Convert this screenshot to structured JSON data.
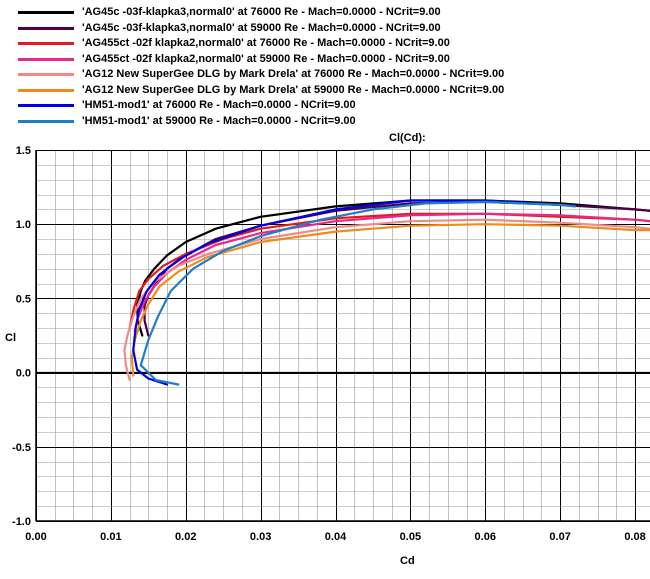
{
  "chart_data": {
    "type": "line",
    "title": "Cl(Cd):",
    "xlabel": "Cd",
    "ylabel": "Cl",
    "xlim": [
      0,
      0.082
    ],
    "ylim": [
      -1.0,
      1.5
    ],
    "xticks": [
      "0.00",
      "0.01",
      "0.02",
      "0.03",
      "0.04",
      "0.05",
      "0.06",
      "0.07",
      "0.08"
    ],
    "yticks": [
      "1.5",
      "1.0",
      "0.5",
      "0.0",
      "-0.5",
      "-1.0"
    ],
    "grid": true,
    "legend_position": "top-left",
    "series": [
      {
        "name": "'AG45c -03f-klapka3,normal0' at 76000 Re - Mach=0.0000 - NCrit=9.00",
        "color": "#000000",
        "x": [
          0.0142,
          0.0136,
          0.0135,
          0.014,
          0.0146,
          0.0158,
          0.0175,
          0.02,
          0.024,
          0.03,
          0.04,
          0.05,
          0.06,
          0.07,
          0.08,
          0.082
        ],
        "y": [
          0.25,
          0.35,
          0.45,
          0.55,
          0.62,
          0.7,
          0.79,
          0.88,
          0.97,
          1.05,
          1.12,
          1.16,
          1.16,
          1.14,
          1.1,
          1.09
        ]
      },
      {
        "name": "'AG45c -03f-klapka3,normal0' at 59000 Re - Mach=0.0000 - NCrit=9.00",
        "color": "#4b0049",
        "x": [
          0.015,
          0.0145,
          0.0145,
          0.015,
          0.016,
          0.0175,
          0.02,
          0.024,
          0.03,
          0.04,
          0.05,
          0.06,
          0.07,
          0.08,
          0.082
        ],
        "y": [
          0.25,
          0.35,
          0.45,
          0.52,
          0.6,
          0.7,
          0.79,
          0.9,
          0.99,
          1.09,
          1.14,
          1.15,
          1.13,
          1.1,
          1.09
        ]
      },
      {
        "name": "'AG455ct -02f klapka2,normal0' at 76000 Re - Mach=0.0000 - NCrit=9.00",
        "color": "#e51a1a",
        "x": [
          0.0125,
          0.013,
          0.0138,
          0.015,
          0.017,
          0.02,
          0.025,
          0.03,
          0.04,
          0.05,
          0.06,
          0.07,
          0.08,
          0.082
        ],
        "y": [
          0.3,
          0.42,
          0.55,
          0.63,
          0.72,
          0.8,
          0.9,
          0.97,
          1.04,
          1.07,
          1.07,
          1.05,
          1.03,
          1.02
        ]
      },
      {
        "name": "'AG455ct -02f klapka2,normal0' at 59000 Re - Mach=0.0000 - NCrit=9.00",
        "color": "#e8288a",
        "x": [
          0.0132,
          0.0137,
          0.0145,
          0.0158,
          0.0175,
          0.02,
          0.024,
          0.03,
          0.04,
          0.05,
          0.06,
          0.07,
          0.08,
          0.082
        ],
        "y": [
          0.28,
          0.38,
          0.48,
          0.58,
          0.67,
          0.76,
          0.86,
          0.94,
          1.02,
          1.06,
          1.07,
          1.06,
          1.03,
          1.02
        ]
      },
      {
        "name": "'AG12 New SuperGee DLG by Mark Drela' at 76000 Re - Mach=0.0000 - NCrit=9.00",
        "color": "#f08a8a",
        "x": [
          0.0125,
          0.012,
          0.0118,
          0.0122,
          0.013,
          0.014,
          0.016,
          0.019,
          0.023,
          0.03,
          0.04,
          0.05,
          0.06,
          0.07,
          0.08,
          0.082
        ],
        "y": [
          -0.05,
          0.05,
          0.15,
          0.25,
          0.38,
          0.5,
          0.62,
          0.72,
          0.8,
          0.9,
          0.98,
          1.02,
          1.03,
          1.01,
          0.98,
          0.97
        ]
      },
      {
        "name": "'AG12 New SuperGee DLG by Mark Drela' at 59000 Re - Mach=0.0000 - NCrit=9.00",
        "color": "#f08a1e",
        "x": [
          0.013,
          0.0128,
          0.0132,
          0.014,
          0.015,
          0.0165,
          0.019,
          0.023,
          0.03,
          0.04,
          0.05,
          0.06,
          0.07,
          0.08,
          0.082
        ],
        "y": [
          -0.02,
          0.1,
          0.22,
          0.35,
          0.46,
          0.58,
          0.68,
          0.78,
          0.88,
          0.95,
          0.99,
          1.0,
          0.99,
          0.96,
          0.96
        ]
      },
      {
        "name": "'HM51-mod1' at 76000 Re - Mach=0.0000 - NCrit=9.00",
        "color": "#0000e6",
        "x": [
          0.0175,
          0.015,
          0.0135,
          0.013,
          0.0133,
          0.0138,
          0.0148,
          0.0165,
          0.019,
          0.023,
          0.03,
          0.04,
          0.05,
          0.06,
          0.07
        ],
        "y": [
          -0.08,
          -0.04,
          0.02,
          0.15,
          0.3,
          0.43,
          0.55,
          0.66,
          0.76,
          0.87,
          0.99,
          1.1,
          1.16,
          1.16,
          1.13
        ]
      },
      {
        "name": "'HM51-mod1' at 59000 Re - Mach=0.0000 - NCrit=9.00",
        "color": "#1e7fc8",
        "x": [
          0.019,
          0.016,
          0.014,
          0.015,
          0.0163,
          0.018,
          0.021,
          0.025,
          0.03,
          0.038,
          0.045,
          0.052,
          0.06,
          0.07,
          0.072
        ],
        "y": [
          -0.08,
          -0.05,
          0.05,
          0.22,
          0.38,
          0.55,
          0.7,
          0.82,
          0.92,
          1.03,
          1.1,
          1.14,
          1.15,
          1.13,
          1.12
        ]
      }
    ]
  }
}
